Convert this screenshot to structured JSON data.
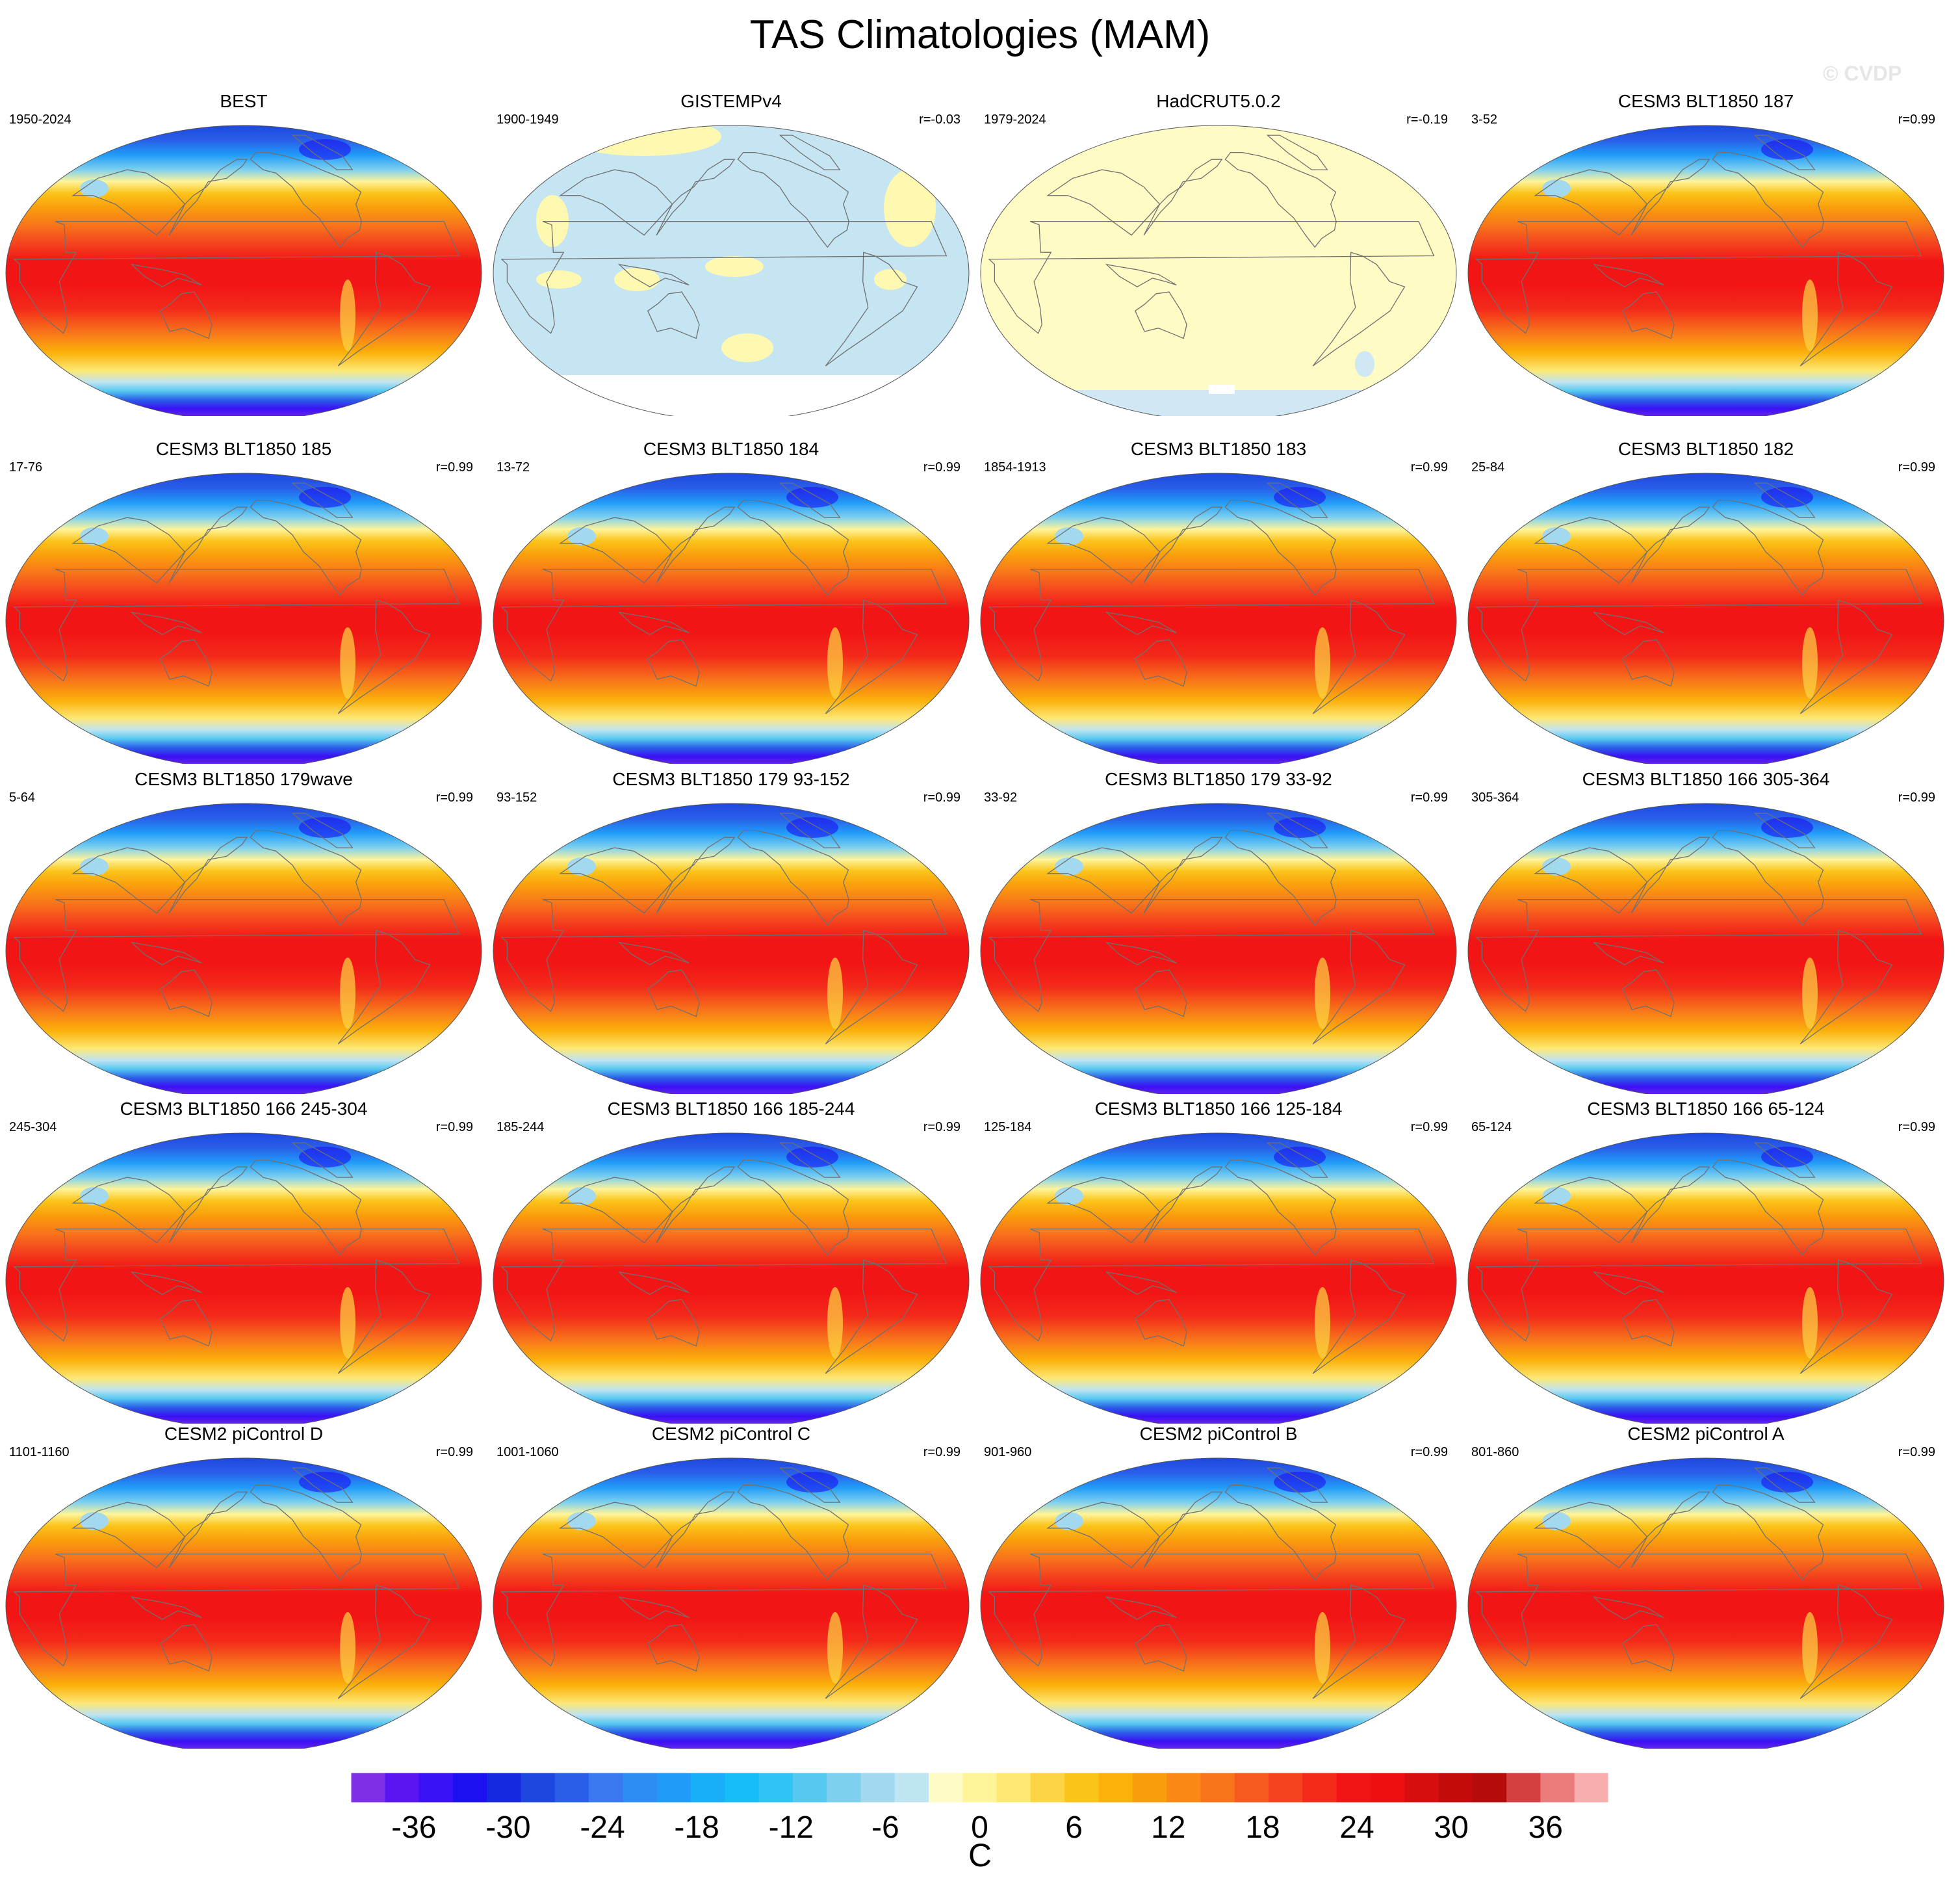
{
  "title": "TAS Climatologies (MAM)",
  "watermark": "© CVDP",
  "chart_data": {
    "type": "heatmap",
    "title": "TAS Climatologies (MAM)",
    "projection": "Robinson world maps, 5 rows x 4 columns",
    "colorbar": {
      "unit": "C",
      "levels": [
        -40,
        -38,
        -36,
        -34,
        -32,
        -30,
        -28,
        -26,
        -24,
        -22,
        -20,
        -18,
        -16,
        -14,
        -12,
        -10,
        -8,
        -6,
        -4,
        -2,
        0,
        2,
        4,
        6,
        8,
        10,
        12,
        14,
        16,
        18,
        20,
        22,
        24,
        26,
        28,
        30,
        32,
        34,
        36,
        38,
        40
      ],
      "tick_labels": [
        "-36",
        "-30",
        "-24",
        "-18",
        "-12",
        "-6",
        "0",
        "6",
        "12",
        "18",
        "24",
        "30",
        "36"
      ],
      "tick_values": [
        -36,
        -30,
        -24,
        -18,
        -12,
        -6,
        0,
        6,
        12,
        18,
        24,
        30,
        36
      ],
      "colors": [
        "#7f2fe6",
        "#5a16f0",
        "#3a10f5",
        "#1c10f0",
        "#1428e0",
        "#1e47e0",
        "#2a5ee8",
        "#3a78f0",
        "#2e8cf5",
        "#209cf8",
        "#18aef8",
        "#16bdf8",
        "#30c4f5",
        "#55c8f0",
        "#7ed0ef",
        "#a2d9ef",
        "#bfe4f2",
        "#fffbc4",
        "#fff49a",
        "#fde874",
        "#fcd545",
        "#fbc419",
        "#fbb10a",
        "#fa9d0c",
        "#f98914",
        "#f8741b",
        "#f65b1e",
        "#f4431e",
        "#f32a1a",
        "#f21515",
        "#ee1010",
        "#d80d0d",
        "#c40b0b",
        "#b50b0b",
        "#d43f3f",
        "#ec7b7b",
        "#f9aeae"
      ]
    },
    "panels": [
      {
        "name": "BEST",
        "years": "1950-2024",
        "r": "",
        "style": "full"
      },
      {
        "name": "GISTEMPv4",
        "years": "1900-1949",
        "r": "r=-0.03",
        "style": "gistemp"
      },
      {
        "name": "HadCRUT5.0.2",
        "years": "1979-2024",
        "r": "r=-0.19",
        "style": "hadcrut"
      },
      {
        "name": "CESM3 BLT1850 187",
        "years": "3-52",
        "r": "r=0.99",
        "style": "full"
      },
      {
        "name": "CESM3 BLT1850 185",
        "years": "17-76",
        "r": "r=0.99",
        "style": "full"
      },
      {
        "name": "CESM3 BLT1850 184",
        "years": "13-72",
        "r": "r=0.99",
        "style": "full"
      },
      {
        "name": "CESM3 BLT1850 183",
        "years": "1854-1913",
        "r": "r=0.99",
        "style": "full"
      },
      {
        "name": "CESM3 BLT1850 182",
        "years": "25-84",
        "r": "r=0.99",
        "style": "full"
      },
      {
        "name": "CESM3 BLT1850 179wave",
        "years": "5-64",
        "r": "r=0.99",
        "style": "full"
      },
      {
        "name": "CESM3 BLT1850 179 93-152",
        "years": "93-152",
        "r": "r=0.99",
        "style": "full"
      },
      {
        "name": "CESM3 BLT1850 179 33-92",
        "years": "33-92",
        "r": "r=0.99",
        "style": "full"
      },
      {
        "name": "CESM3 BLT1850 166 305-364",
        "years": "305-364",
        "r": "r=0.99",
        "style": "full"
      },
      {
        "name": "CESM3 BLT1850 166 245-304",
        "years": "245-304",
        "r": "r=0.99",
        "style": "full"
      },
      {
        "name": "CESM3 BLT1850 166 185-244",
        "years": "185-244",
        "r": "r=0.99",
        "style": "full"
      },
      {
        "name": "CESM3 BLT1850 166 125-184",
        "years": "125-184",
        "r": "r=0.99",
        "style": "full"
      },
      {
        "name": "CESM3 BLT1850 166 65-124",
        "years": "65-124",
        "r": "r=0.99",
        "style": "full"
      },
      {
        "name": "CESM2 piControl D",
        "years": "1101-1160",
        "r": "r=0.99",
        "style": "full"
      },
      {
        "name": "CESM2 piControl C",
        "years": "1001-1060",
        "r": "r=0.99",
        "style": "full"
      },
      {
        "name": "CESM2 piControl B",
        "years": "901-960",
        "r": "r=0.99",
        "style": "full"
      },
      {
        "name": "CESM2 piControl A",
        "years": "801-860",
        "r": "r=0.99",
        "style": "full"
      }
    ]
  }
}
